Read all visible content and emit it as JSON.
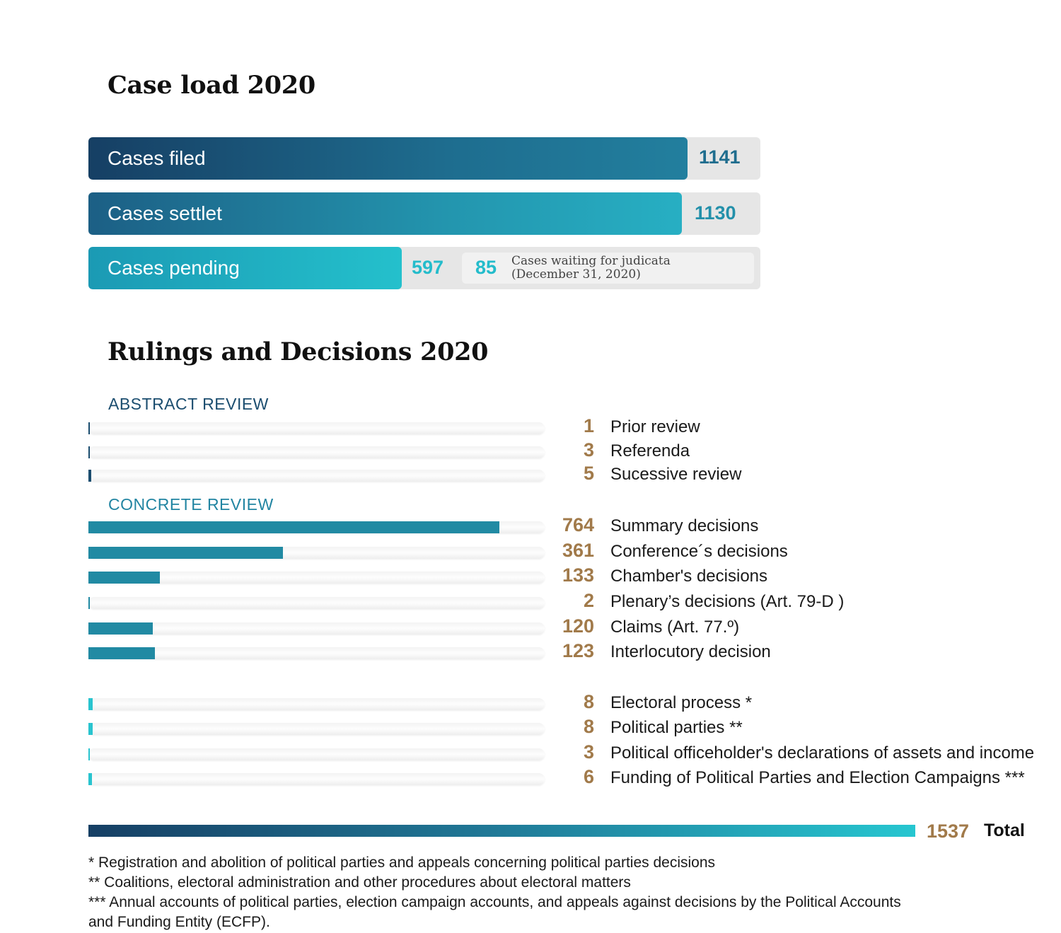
{
  "case_load": {
    "title": "Case load 2020",
    "filed": {
      "label": "Cases filed",
      "value": "1141"
    },
    "settled": {
      "label": "Cases settlet",
      "value": "1130"
    },
    "pending": {
      "label": "Cases pending",
      "value": "597",
      "waiting_value": "85",
      "waiting_line1": "Cases waiting for judicata",
      "waiting_line2": "(December 31, 2020)"
    }
  },
  "rulings": {
    "title": "Rulings and Decisions 2020",
    "abstract_label": "ABSTRACT REVIEW",
    "concrete_label": "CONCRETE REVIEW",
    "total_value": "1537",
    "total_label": "Total"
  },
  "footnotes": [
    "* Registration and abolition of political parties and appeals concerning political parties decisions",
    "** Coalitions, electoral administration and other procedures about electoral matters",
    "*** Annual accounts of political parties, election campaign accounts, and appeals against decisions by the Political Accounts",
    "and Funding Entity (ECFP)."
  ],
  "colors": {
    "abstract": "#1b4d6f",
    "concrete": "#218aa3",
    "electoral": "#29c4cf",
    "value_gold": "#a17a4a"
  },
  "chart_data": [
    {
      "type": "bar",
      "title": "Case load 2020",
      "categories": [
        "Cases filed",
        "Cases settlet",
        "Cases pending"
      ],
      "values": [
        1141,
        1130,
        597
      ],
      "annotations": [
        {
          "value": 85,
          "text": "Cases waiting for judicata (December 31, 2020)"
        }
      ]
    },
    {
      "type": "bar",
      "title": "Rulings and Decisions 2020",
      "total": 1537,
      "groups": [
        {
          "name": "ABSTRACT REVIEW",
          "categories": [
            "Prior review",
            "Referenda",
            "Sucessive review"
          ],
          "values": [
            1,
            3,
            5
          ]
        },
        {
          "name": "CONCRETE REVIEW",
          "categories": [
            "Summary decisions",
            "Conference´s decisions",
            "Chamber's decisions",
            "Plenary’s decisions  (Art. 79-D )",
            "Claims (Art. 77.º)",
            "Interlocutory decision"
          ],
          "values": [
            764,
            361,
            133,
            2,
            120,
            123
          ]
        },
        {
          "name": "",
          "categories": [
            "Electoral process *",
            "Political parties **",
            "Political officeholder's declarations of assets and income",
            "Funding of Political Parties and Election Campaigns ***"
          ],
          "values": [
            8,
            8,
            3,
            6
          ]
        }
      ]
    }
  ]
}
